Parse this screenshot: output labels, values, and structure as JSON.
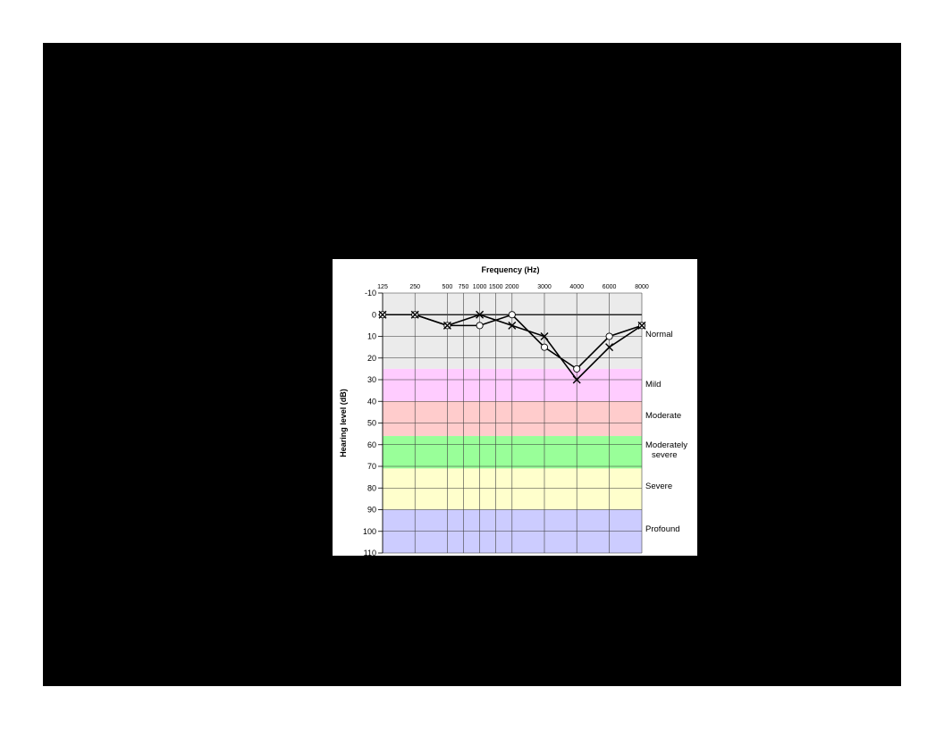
{
  "chart_data": {
    "type": "line",
    "title": "Frequency (Hz)",
    "xlabel": "Frequency (Hz)",
    "ylabel": "Hearing level (dB)",
    "x_ticks": [
      "125",
      "250",
      "500",
      "750",
      "1000",
      "1500",
      "2000",
      "3000",
      "4000",
      "6000",
      "8000"
    ],
    "y_ticks": [
      "-10",
      "0",
      "10",
      "20",
      "30",
      "40",
      "50",
      "60",
      "70",
      "80",
      "90",
      "100",
      "110"
    ],
    "ylim": [
      -10,
      110
    ],
    "y_inverted": true,
    "grid": true,
    "bands": [
      {
        "label": "Normal",
        "from": -10,
        "to": 25,
        "color": "#ebebeb"
      },
      {
        "label": "Mild",
        "from": 25,
        "to": 40,
        "color": "#ffccff"
      },
      {
        "label": "Moderate",
        "from": 40,
        "to": 56,
        "color": "#ffcccc"
      },
      {
        "label": "Moderately severe",
        "label_lines": [
          "Moderately",
          "severe"
        ],
        "from": 56,
        "to": 71,
        "color": "#99ff99"
      },
      {
        "label": "Severe",
        "from": 71,
        "to": 90,
        "color": "#ffffcc"
      },
      {
        "label": "Profound",
        "from": 90,
        "to": 110,
        "color": "#ccccff"
      }
    ],
    "series": [
      {
        "marker": "circle",
        "x": [
          "125",
          "250",
          "500",
          "1000",
          "2000",
          "3000",
          "4000",
          "6000",
          "8000"
        ],
        "values": [
          0,
          0,
          5,
          5,
          0,
          15,
          25,
          10,
          5
        ]
      },
      {
        "marker": "cross",
        "x": [
          "125",
          "250",
          "500",
          "1000",
          "2000",
          "3000",
          "4000",
          "6000",
          "8000"
        ],
        "values": [
          0,
          0,
          5,
          0,
          5,
          10,
          30,
          15,
          5
        ]
      }
    ]
  }
}
